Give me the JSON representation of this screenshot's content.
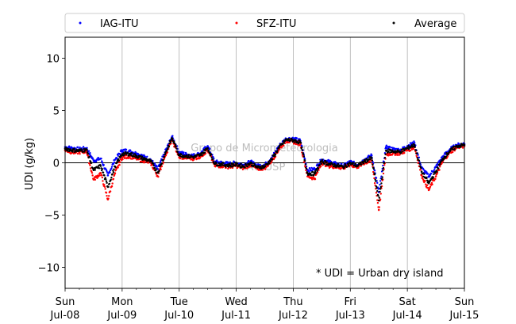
{
  "chart_data": {
    "type": "scatter",
    "ylabel": "UDI (g/kg)",
    "ylim": [
      -12,
      12
    ],
    "yticks": [
      10,
      5,
      0,
      -5,
      -10
    ],
    "xlim": [
      "2023-07-08",
      "2023-07-15"
    ],
    "xticks": [
      {
        "date": "2023-07-08",
        "day": "Sun",
        "label": "Jul-08"
      },
      {
        "date": "2023-07-09",
        "day": "Mon",
        "label": "Jul-09"
      },
      {
        "date": "2023-07-10",
        "day": "Tue",
        "label": "Jul-10"
      },
      {
        "date": "2023-07-11",
        "day": "Wed",
        "label": "Jul-11"
      },
      {
        "date": "2023-07-12",
        "day": "Thu",
        "label": "Jul-12"
      },
      {
        "date": "2023-07-13",
        "day": "Fri",
        "label": "Jul-13"
      },
      {
        "date": "2023-07-14",
        "day": "Sat",
        "label": "Jul-14"
      },
      {
        "date": "2023-07-15",
        "day": "Sun",
        "label": "Jul-15"
      }
    ],
    "grid": "vertical",
    "zero_line": true,
    "legend": {
      "placement": "top",
      "columns": 3
    },
    "annotation": "* UDI = Urban dry island",
    "watermark": [
      "Grupo de Micrometeorologia",
      "IAG/USP"
    ],
    "series": [
      {
        "name": "IAG-ITU",
        "color": "#0000ff",
        "x": [
          "2023-07-08 00:00",
          "2023-07-08 03:00",
          "2023-07-08 06:00",
          "2023-07-08 09:00",
          "2023-07-08 12:00",
          "2023-07-08 15:00",
          "2023-07-08 18:00",
          "2023-07-08 21:00",
          "2023-07-09 00:00",
          "2023-07-09 03:00",
          "2023-07-09 06:00",
          "2023-07-09 09:00",
          "2023-07-09 12:00",
          "2023-07-09 15:00",
          "2023-07-09 18:00",
          "2023-07-09 21:00",
          "2023-07-10 00:00",
          "2023-07-10 03:00",
          "2023-07-10 06:00",
          "2023-07-10 09:00",
          "2023-07-10 12:00",
          "2023-07-10 15:00",
          "2023-07-10 18:00",
          "2023-07-10 21:00",
          "2023-07-11 00:00",
          "2023-07-11 03:00",
          "2023-07-11 06:00",
          "2023-07-11 09:00",
          "2023-07-11 12:00",
          "2023-07-11 15:00",
          "2023-07-11 18:00",
          "2023-07-11 21:00",
          "2023-07-12 00:00",
          "2023-07-12 03:00",
          "2023-07-12 06:00",
          "2023-07-12 09:00",
          "2023-07-12 12:00",
          "2023-07-12 15:00",
          "2023-07-12 18:00",
          "2023-07-12 21:00",
          "2023-07-13 00:00",
          "2023-07-13 03:00",
          "2023-07-13 06:00",
          "2023-07-13 09:00",
          "2023-07-13 12:00",
          "2023-07-13 15:00",
          "2023-07-13 18:00",
          "2023-07-13 21:00",
          "2023-07-14 00:00",
          "2023-07-14 03:00",
          "2023-07-14 06:00",
          "2023-07-14 09:00",
          "2023-07-14 12:00",
          "2023-07-14 15:00",
          "2023-07-14 18:00",
          "2023-07-14 21:00",
          "2023-07-15 00:00"
        ],
        "y": [
          1.5,
          1.4,
          1.3,
          1.4,
          0.2,
          0.4,
          -1.2,
          0.3,
          1.2,
          1.1,
          0.9,
          0.6,
          0.3,
          -0.6,
          1.0,
          2.5,
          1.0,
          0.8,
          0.7,
          0.9,
          1.6,
          0.1,
          0.0,
          -0.1,
          0.0,
          -0.2,
          0.1,
          -0.3,
          -0.2,
          0.5,
          1.6,
          2.3,
          2.3,
          2.1,
          -0.7,
          -0.6,
          0.3,
          0.1,
          -0.1,
          -0.3,
          0.1,
          -0.2,
          0.3,
          0.7,
          -2.8,
          1.5,
          1.3,
          1.2,
          1.6,
          1.9,
          -0.5,
          -1.3,
          -0.4,
          0.6,
          1.3,
          1.7,
          1.8
        ]
      },
      {
        "name": "SFZ-ITU",
        "color": "#ff0000",
        "x": [
          "2023-07-08 00:00",
          "2023-07-08 03:00",
          "2023-07-08 06:00",
          "2023-07-08 09:00",
          "2023-07-08 12:00",
          "2023-07-08 15:00",
          "2023-07-08 18:00",
          "2023-07-08 21:00",
          "2023-07-09 00:00",
          "2023-07-09 03:00",
          "2023-07-09 06:00",
          "2023-07-09 09:00",
          "2023-07-09 12:00",
          "2023-07-09 15:00",
          "2023-07-09 18:00",
          "2023-07-09 21:00",
          "2023-07-10 00:00",
          "2023-07-10 03:00",
          "2023-07-10 06:00",
          "2023-07-10 09:00",
          "2023-07-10 12:00",
          "2023-07-10 15:00",
          "2023-07-10 18:00",
          "2023-07-10 21:00",
          "2023-07-11 00:00",
          "2023-07-11 03:00",
          "2023-07-11 06:00",
          "2023-07-11 09:00",
          "2023-07-11 12:00",
          "2023-07-11 15:00",
          "2023-07-11 18:00",
          "2023-07-11 21:00",
          "2023-07-12 00:00",
          "2023-07-12 03:00",
          "2023-07-12 06:00",
          "2023-07-12 09:00",
          "2023-07-12 12:00",
          "2023-07-12 15:00",
          "2023-07-12 18:00",
          "2023-07-12 21:00",
          "2023-07-13 00:00",
          "2023-07-13 03:00",
          "2023-07-13 06:00",
          "2023-07-13 09:00",
          "2023-07-13 12:00",
          "2023-07-13 15:00",
          "2023-07-13 18:00",
          "2023-07-13 21:00",
          "2023-07-14 00:00",
          "2023-07-14 03:00",
          "2023-07-14 06:00",
          "2023-07-14 09:00",
          "2023-07-14 12:00",
          "2023-07-14 15:00",
          "2023-07-14 18:00",
          "2023-07-14 21:00",
          "2023-07-15 00:00"
        ],
        "y": [
          1.2,
          1.0,
          1.0,
          1.1,
          -1.6,
          -1.0,
          -3.5,
          -1.0,
          0.5,
          0.6,
          0.4,
          0.2,
          0.0,
          -1.3,
          0.6,
          2.2,
          0.5,
          0.5,
          0.4,
          0.6,
          1.2,
          -0.3,
          -0.3,
          -0.4,
          -0.3,
          -0.5,
          -0.2,
          -0.6,
          -0.5,
          0.2,
          1.3,
          2.1,
          2.0,
          1.8,
          -1.3,
          -1.5,
          0.0,
          -0.3,
          -0.4,
          -0.5,
          -0.2,
          -0.4,
          0.0,
          0.2,
          -4.5,
          0.8,
          0.9,
          0.9,
          1.2,
          1.5,
          -1.2,
          -2.6,
          -1.3,
          0.2,
          1.0,
          1.5,
          1.6
        ]
      },
      {
        "name": "Average",
        "color": "#000000",
        "x": [
          "2023-07-08 00:00",
          "2023-07-08 03:00",
          "2023-07-08 06:00",
          "2023-07-08 09:00",
          "2023-07-08 12:00",
          "2023-07-08 15:00",
          "2023-07-08 18:00",
          "2023-07-08 21:00",
          "2023-07-09 00:00",
          "2023-07-09 03:00",
          "2023-07-09 06:00",
          "2023-07-09 09:00",
          "2023-07-09 12:00",
          "2023-07-09 15:00",
          "2023-07-09 18:00",
          "2023-07-09 21:00",
          "2023-07-10 00:00",
          "2023-07-10 03:00",
          "2023-07-10 06:00",
          "2023-07-10 09:00",
          "2023-07-10 12:00",
          "2023-07-10 15:00",
          "2023-07-10 18:00",
          "2023-07-10 21:00",
          "2023-07-11 00:00",
          "2023-07-11 03:00",
          "2023-07-11 06:00",
          "2023-07-11 09:00",
          "2023-07-11 12:00",
          "2023-07-11 15:00",
          "2023-07-11 18:00",
          "2023-07-11 21:00",
          "2023-07-12 00:00",
          "2023-07-12 03:00",
          "2023-07-12 06:00",
          "2023-07-12 09:00",
          "2023-07-12 12:00",
          "2023-07-12 15:00",
          "2023-07-12 18:00",
          "2023-07-12 21:00",
          "2023-07-13 00:00",
          "2023-07-13 03:00",
          "2023-07-13 06:00",
          "2023-07-13 09:00",
          "2023-07-13 12:00",
          "2023-07-13 15:00",
          "2023-07-13 18:00",
          "2023-07-13 21:00",
          "2023-07-14 00:00",
          "2023-07-14 03:00",
          "2023-07-14 06:00",
          "2023-07-14 09:00",
          "2023-07-14 12:00",
          "2023-07-14 15:00",
          "2023-07-14 18:00",
          "2023-07-14 21:00",
          "2023-07-15 00:00"
        ],
        "y": [
          1.35,
          1.2,
          1.15,
          1.25,
          -0.7,
          -0.3,
          -2.3,
          -0.35,
          0.85,
          0.85,
          0.65,
          0.4,
          0.15,
          -0.95,
          0.8,
          2.35,
          0.75,
          0.65,
          0.55,
          0.75,
          1.4,
          -0.1,
          -0.15,
          -0.25,
          -0.15,
          -0.35,
          -0.05,
          -0.45,
          -0.35,
          0.35,
          1.45,
          2.2,
          2.15,
          1.95,
          -1.0,
          -1.05,
          0.15,
          -0.1,
          -0.25,
          -0.4,
          -0.05,
          -0.3,
          0.15,
          0.45,
          -3.6,
          1.15,
          1.1,
          1.05,
          1.4,
          1.7,
          -0.85,
          -1.95,
          -0.85,
          0.4,
          1.15,
          1.6,
          1.7
        ]
      }
    ]
  }
}
